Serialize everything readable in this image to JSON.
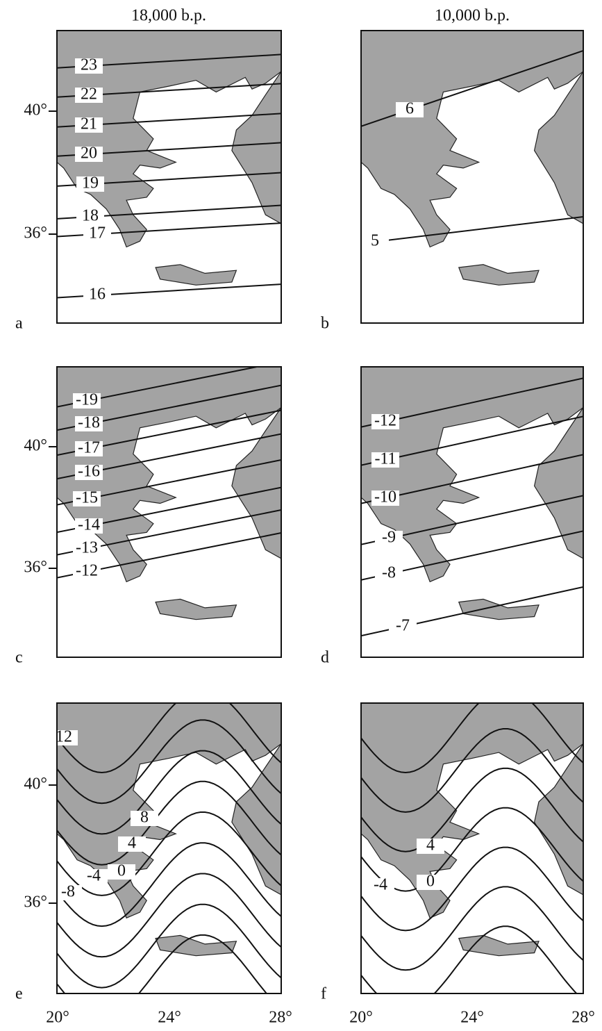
{
  "columns": [
    "18,000 b.p.",
    "10,000 b.p."
  ],
  "panels": [
    {
      "letter": "a",
      "contour_labels": [
        "23",
        "22",
        "21",
        "20",
        "19",
        "18",
        "17",
        "16"
      ]
    },
    {
      "letter": "b",
      "contour_labels": [
        "6",
        "5"
      ]
    },
    {
      "letter": "c",
      "contour_labels": [
        "-19",
        "-18",
        "-17",
        "-16",
        "-15",
        "-14",
        "-13",
        "-12"
      ]
    },
    {
      "letter": "d",
      "contour_labels": [
        "-12",
        "-11",
        "-10",
        "-9",
        "-8",
        "-7"
      ]
    },
    {
      "letter": "e",
      "contour_labels": [
        "12",
        "8",
        "4",
        "0",
        "-4",
        "-8"
      ]
    },
    {
      "letter": "f",
      "contour_labels": [
        "4",
        "0",
        "-4"
      ]
    }
  ],
  "latitude_labels": [
    "40°",
    "36°"
  ],
  "longitude_labels": [
    "20°",
    "24°",
    "28°"
  ]
}
